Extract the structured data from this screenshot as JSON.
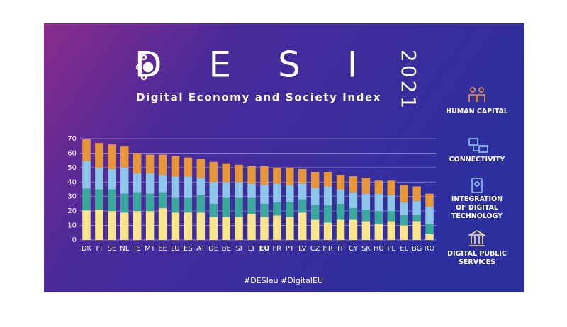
{
  "title": "DESI",
  "year": "2021",
  "subtitle": "Digital Economy and Society Index",
  "footer": "#DESIeu  #DigitalEU",
  "chart_data": {
    "type": "stacked_bar",
    "categories": [
      "DK",
      "FI",
      "SE",
      "NL",
      "IE",
      "MT",
      "EE",
      "LU",
      "ES",
      "AT",
      "DE",
      "BE",
      "SI",
      "LT",
      "EU",
      "FR",
      "PT",
      "LV",
      "CZ",
      "HR",
      "IT",
      "CY",
      "SK",
      "HU",
      "PL",
      "EL",
      "BG",
      "RO"
    ],
    "highlight": 14,
    "series": [
      {
        "name": "DIGITAL PUBLIC SERVICES",
        "color": "#f8e58c",
        "values": [
          20.5,
          21,
          20,
          19,
          20,
          20,
          22,
          19,
          19,
          19,
          16,
          16,
          16,
          18,
          16,
          17,
          16,
          19,
          14,
          12,
          14,
          14,
          13,
          11,
          13,
          10,
          13,
          4
        ]
      },
      {
        "name": "INTEGRATION OF DIGITAL TECHNOLOGY",
        "color": "#3aa89a",
        "values": [
          15,
          14,
          15,
          13,
          13,
          12,
          11,
          10,
          10,
          12,
          9,
          13,
          13,
          11,
          9,
          9,
          10,
          9,
          10,
          12,
          11,
          8,
          8,
          9,
          7,
          7,
          4,
          7
        ]
      },
      {
        "name": "CONNECTIVITY",
        "color": "#8ec6ea",
        "values": [
          19,
          15,
          14,
          18,
          13,
          14,
          12,
          15,
          15,
          12,
          15,
          11,
          11,
          10,
          13,
          13,
          12,
          11,
          12,
          13,
          10,
          11,
          11,
          12,
          11,
          9,
          10,
          12
        ]
      },
      {
        "name": "HUMAN CAPITAL",
        "color": "#e8963a",
        "values": [
          15,
          17,
          17,
          15,
          14,
          13,
          14,
          14,
          13,
          13,
          14,
          13,
          12,
          12,
          13,
          11,
          12,
          10,
          11,
          10,
          10,
          11,
          11,
          9,
          10,
          12,
          10,
          9
        ]
      }
    ],
    "ylim": [
      0,
      70
    ],
    "yticks": [
      0,
      10,
      20,
      30,
      40,
      50,
      60,
      70
    ],
    "grid": true
  }
}
